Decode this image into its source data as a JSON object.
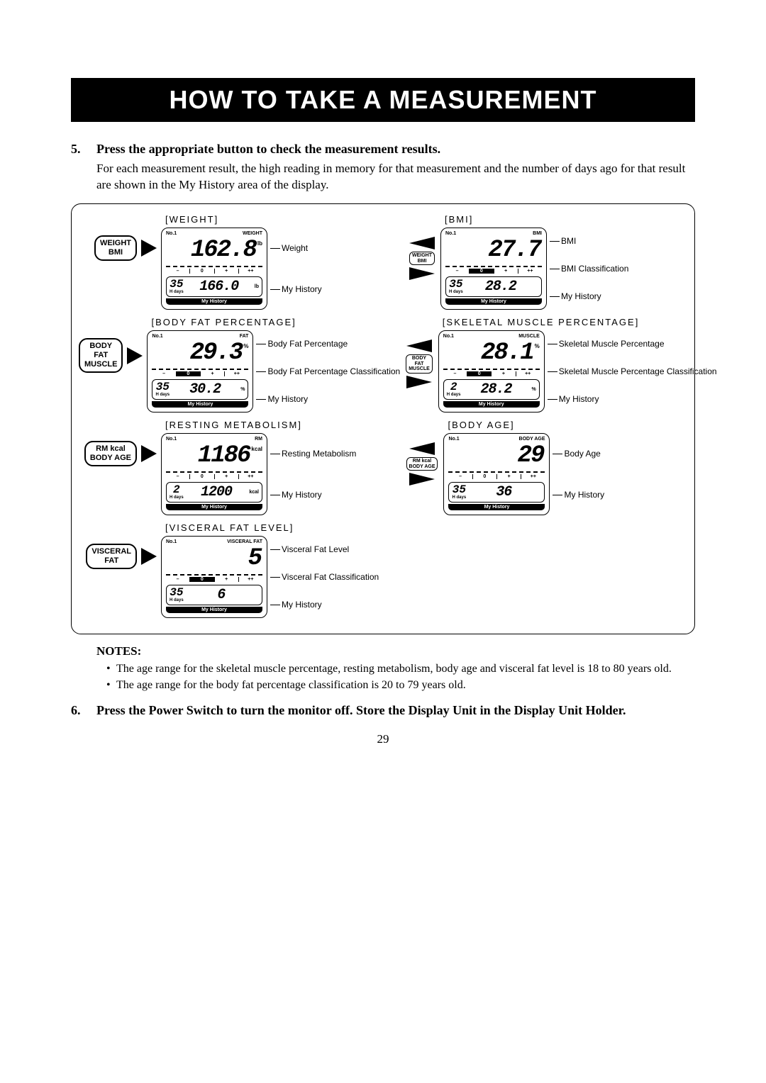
{
  "banner": "HOW TO TAKE A MEASUREMENT",
  "step5": {
    "num": "5.",
    "title": "Press the appropriate button to check the measurement results.",
    "desc": "For each measurement result, the high reading in memory for that measurement and the number of days ago for that result are shown in the My History area of the display."
  },
  "labels": {
    "no1": "No.1",
    "myhistory": "My History",
    "h": "H",
    "days": "days",
    "scale": {
      "m": "–",
      "z": "0",
      "p": "+",
      "pp": "++"
    }
  },
  "rows": [
    {
      "button": "WEIGHT\nBMI",
      "swap": "WEIGHT\nBMI",
      "left": {
        "header": "[WEIGHT]",
        "mode": "WEIGHT",
        "value": "162.8",
        "unit": "lb",
        "history_days": "35",
        "history_value": "166.0",
        "history_unit": "lb",
        "callouts": [
          "Weight",
          "My History"
        ]
      },
      "right": {
        "header": "[BMI]",
        "mode": "BMI",
        "value": "27.7",
        "unit": "",
        "show_class": true,
        "history_days": "35",
        "history_value": "28.2",
        "history_unit": "",
        "callouts": [
          "BMI",
          "BMI Classification",
          "My History"
        ]
      }
    },
    {
      "button": "BODY FAT\nMUSCLE",
      "swap": "BODY FAT\nMUSCLE",
      "left": {
        "header": "[BODY FAT PERCENTAGE]",
        "mode": "FAT",
        "value": "29.3",
        "unit": "%",
        "show_class": true,
        "history_days": "35",
        "history_value": "30.2",
        "history_unit": "%",
        "callouts": [
          "Body Fat Percentage",
          "Body Fat Percentage Classification",
          "My History"
        ]
      },
      "right": {
        "header": "[SKELETAL MUSCLE PERCENTAGE]",
        "mode": "MUSCLE",
        "value": "28.1",
        "unit": "%",
        "show_class": true,
        "history_days": "2",
        "history_value": "28.2",
        "history_unit": "%",
        "callouts": [
          "Skeletal Muscle Percentage",
          "Skeletal Muscle Percentage Classification",
          "My History"
        ]
      }
    },
    {
      "button": "RM kcal\nBODY AGE",
      "swap": "RM kcal\nBODY AGE",
      "left": {
        "header": "[RESTING METABOLISM]",
        "mode": "RM",
        "value": "1186",
        "unit": "kcal",
        "history_days": "2",
        "history_value": "1200",
        "history_unit": "kcal",
        "callouts": [
          "Resting Metabolism",
          "My History"
        ]
      },
      "right": {
        "header": "[BODY AGE]",
        "mode": "BODY AGE",
        "value": "29",
        "unit": "",
        "history_days": "35",
        "history_value": "36",
        "history_unit": "",
        "callouts": [
          "Body Age",
          "My History"
        ]
      }
    },
    {
      "button": "VISCERAL\nFAT",
      "left": {
        "header": "[VISCERAL FAT LEVEL]",
        "mode": "VISCERAL FAT",
        "value": "5",
        "unit": "",
        "show_class": true,
        "history_days": "35",
        "history_value": "6",
        "history_unit": "",
        "callouts": [
          "Visceral Fat Level",
          "Visceral Fat Classification",
          "My History"
        ]
      }
    }
  ],
  "notes": {
    "heading": "NOTES:",
    "items": [
      "The age range for the skeletal muscle percentage, resting metabolism, body age and visceral fat level is 18 to 80 years old.",
      "The age range for the body fat percentage classification is 20 to 79 years old."
    ]
  },
  "step6": {
    "num": "6.",
    "title": "Press the Power Switch to turn the monitor off. Store the Display Unit in the Display Unit Holder."
  },
  "page_number": "29"
}
